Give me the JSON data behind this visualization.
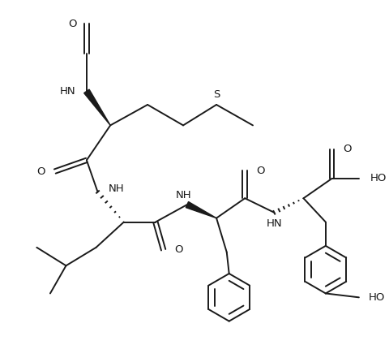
{
  "background_color": "#ffffff",
  "line_color": "#1a1a1a",
  "figsize": [
    4.8,
    4.25
  ],
  "dpi": 100,
  "xlim": [
    0,
    4.8
  ],
  "ylim": [
    0,
    4.25
  ],
  "lw": 1.4,
  "font_size": 9.5
}
